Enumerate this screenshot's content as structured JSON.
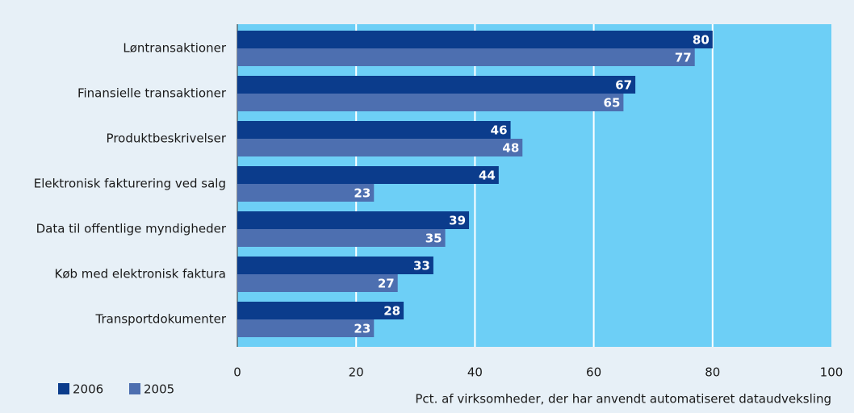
{
  "chart_data": {
    "type": "barh",
    "xlabel": "Pct. af virksomheder, der har anvendt automatiseret dataudveksling",
    "categories": [
      "Løntransaktioner",
      "Finansielle transaktioner",
      "Produktbeskrivelser",
      "Elektronisk fakturering ved salg",
      "Data til offentlige myndigheder",
      "Køb med elektronisk faktura",
      "Transportdokumenter"
    ],
    "series": [
      {
        "name": "2006",
        "color": "#0b3c8c",
        "values": [
          80,
          67,
          46,
          44,
          39,
          33,
          28
        ]
      },
      {
        "name": "2005",
        "color": "#4d6fb0",
        "values": [
          77,
          65,
          48,
          23,
          35,
          27,
          23
        ]
      }
    ],
    "xlim": [
      0,
      100
    ],
    "xticks": [
      0,
      20,
      40,
      60,
      80,
      100
    ],
    "grid": true,
    "legend": "bottom-left"
  }
}
